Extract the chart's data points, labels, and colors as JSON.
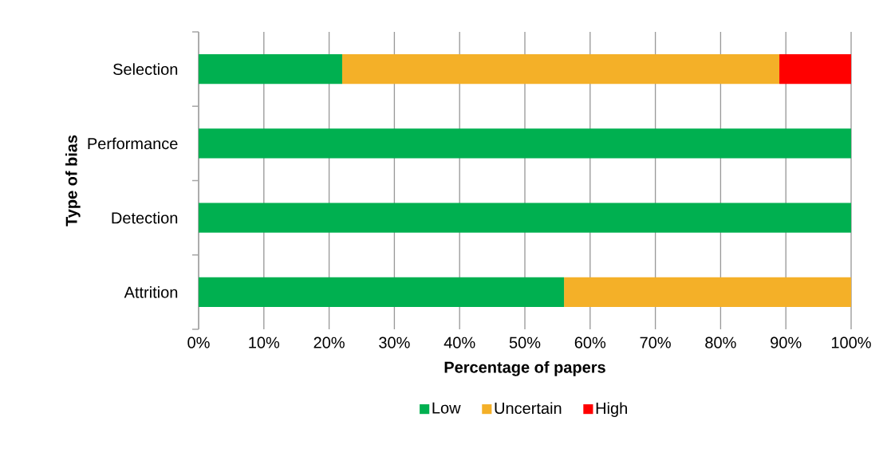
{
  "chart_data": {
    "type": "bar",
    "orientation": "horizontal",
    "stacked": true,
    "xlabel": "Percentage of papers",
    "ylabel": "Type of bias",
    "categories": [
      "Selection",
      "Performance",
      "Detection",
      "Attrition"
    ],
    "series": [
      {
        "name": "Low",
        "color": "#00b050",
        "values": [
          22,
          100,
          100,
          56
        ]
      },
      {
        "name": "Uncertain",
        "color": "#f4b028",
        "values": [
          67,
          0,
          0,
          44
        ]
      },
      {
        "name": "High",
        "color": "#ff0000",
        "values": [
          11,
          0,
          0,
          0
        ]
      }
    ],
    "xlim": [
      0,
      100
    ],
    "xticks": [
      {
        "value": 0,
        "label": "0%"
      },
      {
        "value": 10,
        "label": "10%"
      },
      {
        "value": 20,
        "label": "20%"
      },
      {
        "value": 30,
        "label": "30%"
      },
      {
        "value": 40,
        "label": "40%"
      },
      {
        "value": 50,
        "label": "50%"
      },
      {
        "value": 60,
        "label": "60%"
      },
      {
        "value": 70,
        "label": "70%"
      },
      {
        "value": 80,
        "label": "80%"
      },
      {
        "value": 90,
        "label": "90%"
      },
      {
        "value": 100,
        "label": "100%"
      }
    ],
    "grid": "x",
    "legend": "bottom"
  }
}
